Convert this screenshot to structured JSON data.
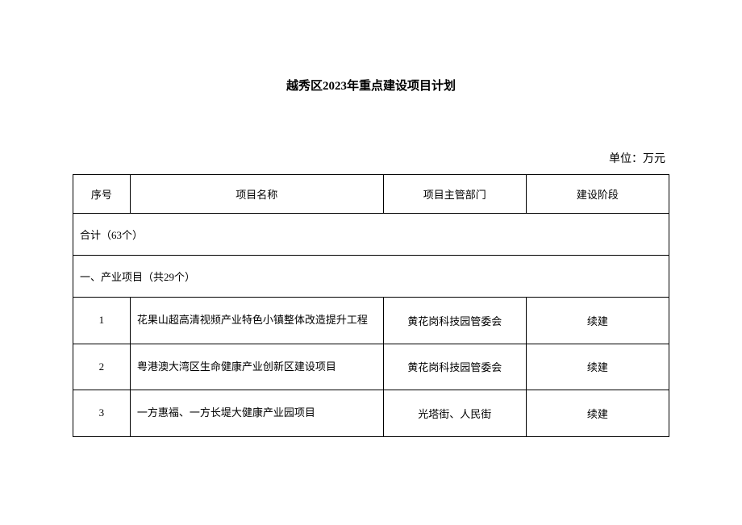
{
  "title": "越秀区2023年重点建设项目计划",
  "unit_label": "单位：万元",
  "table": {
    "headers": {
      "seq": "序号",
      "name": "项目名称",
      "dept": "项目主管部门",
      "stage": "建设阶段"
    },
    "sections": {
      "total": "合计（63个）",
      "industry": "一、产业项目（共29个）"
    },
    "rows": [
      {
        "seq": "1",
        "name": "花果山超高清视频产业特色小镇整体改造提升工程",
        "dept": "黄花岗科技园管委会",
        "stage": "续建"
      },
      {
        "seq": "2",
        "name": "粤港澳大湾区生命健康产业创新区建设项目",
        "dept": "黄花岗科技园管委会",
        "stage": "续建"
      },
      {
        "seq": "3",
        "name": "一方惠福、一方长堤大健康产业园项目",
        "dept": "光塔街、人民街",
        "stage": "续建"
      }
    ]
  }
}
